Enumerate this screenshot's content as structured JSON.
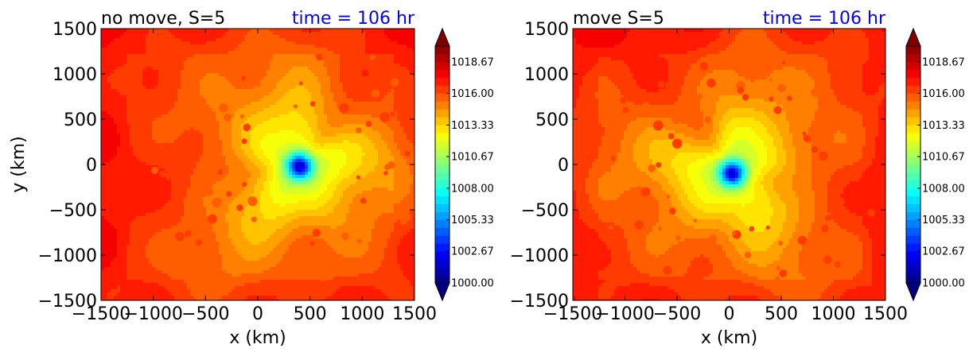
{
  "chart_data": [
    {
      "type": "heatmap",
      "title_left": "no move, S=5",
      "title_right": "time = 106 hr",
      "xlabel": "x (km)",
      "ylabel": "y (km)",
      "xlim": [
        -1500,
        1500
      ],
      "ylim": [
        -1500,
        1500
      ],
      "xticks": [
        "−1500",
        "−1000",
        "−500",
        "0",
        "500",
        "1000",
        "1500"
      ],
      "yticks": [
        "−1500",
        "−1000",
        "−500",
        "0",
        "500",
        "1000",
        "1500"
      ],
      "center": {
        "x": 400,
        "y": -20
      },
      "colorbar": {
        "min": 1000,
        "max": 1020,
        "tick_values": [
          1000,
          1002.67,
          1005.33,
          1008,
          1010.67,
          1013.33,
          1016,
          1018.67
        ],
        "tick_labels": [
          "1000.00",
          "1002.67",
          "1005.33",
          "1008.00",
          "1010.67",
          "1013.33",
          "1016.00",
          "1018.67"
        ]
      }
    },
    {
      "type": "heatmap",
      "title_left": "move S=5",
      "title_right": "time = 106 hr",
      "xlabel": "x (km)",
      "ylabel": "",
      "xlim": [
        -1500,
        1500
      ],
      "ylim": [
        -1500,
        1500
      ],
      "xticks": [
        "−1500",
        "−1000",
        "−500",
        "0",
        "500",
        "1000",
        "1500"
      ],
      "yticks": [
        "−1500",
        "−1000",
        "−500",
        "0",
        "500",
        "1000",
        "1500"
      ],
      "center": {
        "x": 30,
        "y": -100
      },
      "colorbar": {
        "min": 1000,
        "max": 1020,
        "tick_values": [
          1000,
          1002.67,
          1005.33,
          1008,
          1010.67,
          1013.33,
          1016,
          1018.67
        ],
        "tick_labels": [
          "1000.00",
          "1002.67",
          "1005.33",
          "1008.00",
          "1010.67",
          "1013.33",
          "1016.00",
          "1018.67"
        ]
      }
    }
  ],
  "colors": {
    "title_right": "#0000ff",
    "background": "#ffffff"
  }
}
